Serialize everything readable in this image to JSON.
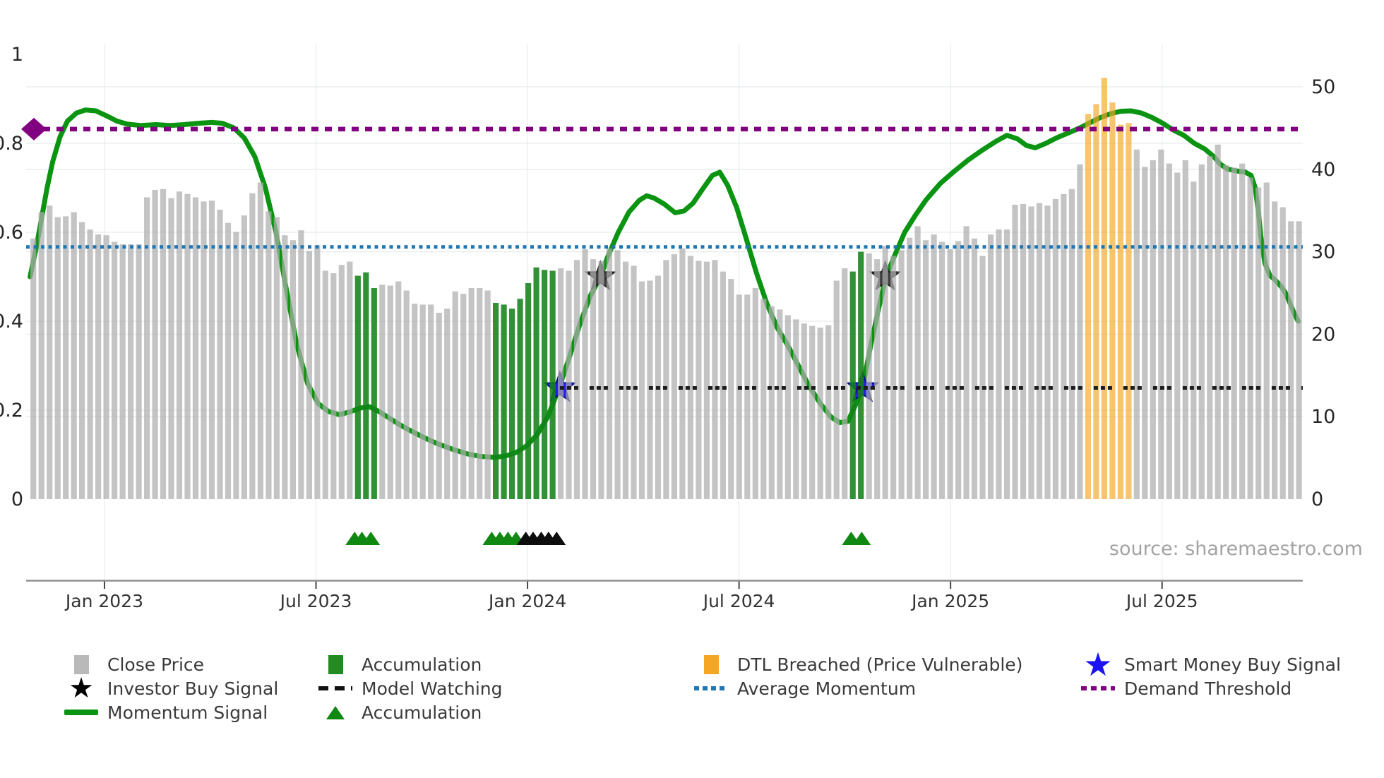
{
  "source_text": "source: sharemaestro.com",
  "legend": {
    "columns": [
      {
        "items": [
          {
            "swatch": "square-gray",
            "label": "Close Price"
          },
          {
            "swatch": "star-black",
            "label": "Investor Buy Signal"
          },
          {
            "swatch": "line-green",
            "label": "Momentum Signal"
          }
        ]
      },
      {
        "items": [
          {
            "swatch": "square-green",
            "label": "Accumulation"
          },
          {
            "swatch": "dash-black",
            "label": "Model Watching"
          },
          {
            "swatch": "triangle-green",
            "label": "Accumulation"
          }
        ]
      },
      {
        "items": [
          {
            "swatch": "square-orange",
            "label": "DTL Breached (Price Vulnerable)"
          },
          {
            "swatch": "dot-blue",
            "label": "Average Momentum"
          }
        ]
      },
      {
        "items": [
          {
            "swatch": "star-blue",
            "label": "Smart Money Buy Signal"
          },
          {
            "swatch": "dot-purple",
            "label": "Demand Threshold"
          }
        ]
      }
    ]
  },
  "chart_data": {
    "type": "combo-bar-line",
    "title": "",
    "x_axis": {
      "tick_labels": [
        "Jan 2023",
        "Jul 2023",
        "Jan 2024",
        "Jul 2024",
        "Jan 2025",
        "Jul 2025"
      ],
      "frequency": "weekly"
    },
    "left_axis": {
      "tick_values": [
        0,
        0.2,
        0.4,
        0.6,
        0.8,
        1
      ],
      "tick_labels": [
        "0",
        "0.2",
        "0.4",
        "0.6",
        "0.8",
        "1"
      ],
      "range": [
        0,
        1
      ],
      "grid_values": [
        0.2,
        0.4,
        0.6,
        0.8
      ]
    },
    "right_axis": {
      "tick_values": [
        0,
        10,
        20,
        30,
        40,
        50
      ],
      "tick_labels": [
        "0",
        "10",
        "20",
        "30",
        "40",
        "50"
      ],
      "range": [
        0,
        54
      ],
      "grid_values": [
        10,
        20,
        30,
        40,
        50
      ]
    },
    "close_price": {
      "values": [
        31.6,
        34.8,
        35.6,
        34.2,
        34.3,
        34.8,
        33.6,
        32.7,
        32.1,
        32.0,
        31.2,
        30.9,
        30.9,
        30.9,
        36.6,
        37.5,
        37.6,
        36.5,
        37.3,
        37.0,
        36.6,
        36.1,
        36.2,
        35.1,
        33.5,
        32.4,
        34.4,
        37.1,
        38.4,
        34.9,
        34.2,
        32.0,
        31.4,
        32.6,
        30.1,
        30.8,
        27.7,
        27.4,
        28.4,
        28.8,
        27.1,
        27.5,
        25.6,
        26.0,
        25.9,
        26.4,
        25.3,
        23.7,
        23.6,
        23.6,
        22.6,
        23.1,
        25.2,
        24.9,
        25.6,
        25.6,
        25.3,
        23.8,
        23.6,
        23.1,
        24.3,
        26.2,
        28.1,
        27.8,
        27.7,
        28.0,
        27.7,
        29.0,
        30.3,
        29.1,
        28.9,
        30.4,
        30.2,
        28.8,
        28.3,
        26.4,
        26.5,
        27.1,
        29.0,
        29.7,
        30.4,
        29.5,
        28.9,
        28.8,
        29.0,
        27.6,
        26.7,
        24.8,
        24.8,
        25.6,
        24.3,
        23.4,
        23.0,
        22.3,
        21.8,
        21.3,
        21.0,
        20.8,
        21.1,
        26.5,
        28.0,
        27.6,
        30.0,
        29.8,
        29.1,
        30.7,
        29.5,
        30.2,
        31.7,
        33.1,
        31.4,
        32.1,
        31.2,
        30.3,
        31.3,
        33.1,
        31.6,
        29.5,
        32.1,
        32.7,
        32.7,
        35.7,
        35.8,
        35.5,
        35.9,
        35.6,
        36.4,
        37.0,
        37.6,
        40.6,
        46.7,
        47.9,
        51.1,
        48.1,
        45.4,
        45.6,
        42.4,
        40.3,
        41.1,
        42.4,
        40.7,
        39.6,
        41.1,
        38.5,
        40.6,
        41.6,
        43.0,
        40.5,
        40.2,
        40.7,
        39.0,
        37.8,
        38.4,
        36.1,
        35.4,
        33.7,
        33.7
      ],
      "accumulation_ranges": [
        [
          40,
          42
        ],
        [
          57,
          64
        ],
        [
          101,
          102
        ]
      ],
      "dtl_breached_ranges": [
        [
          130,
          135
        ]
      ]
    },
    "momentum_signal": {
      "points": [
        [
          -0.4,
          0.5
        ],
        [
          0.3,
          0.56
        ],
        [
          1.0,
          0.63
        ],
        [
          1.7,
          0.7
        ],
        [
          2.4,
          0.76
        ],
        [
          3.3,
          0.815
        ],
        [
          4.2,
          0.85
        ],
        [
          5.3,
          0.868
        ],
        [
          6.4,
          0.875
        ],
        [
          7.7,
          0.873
        ],
        [
          9.0,
          0.862
        ],
        [
          10.3,
          0.85
        ],
        [
          11.6,
          0.843
        ],
        [
          13.3,
          0.84
        ],
        [
          15.1,
          0.842
        ],
        [
          16.8,
          0.84
        ],
        [
          18.6,
          0.842
        ],
        [
          20.3,
          0.845
        ],
        [
          22.0,
          0.847
        ],
        [
          23.3,
          0.845
        ],
        [
          24.7,
          0.835
        ],
        [
          26.0,
          0.812
        ],
        [
          27.3,
          0.77
        ],
        [
          28.6,
          0.7
        ],
        [
          29.9,
          0.6
        ],
        [
          31.2,
          0.47
        ],
        [
          32.5,
          0.345
        ],
        [
          33.8,
          0.26
        ],
        [
          35.1,
          0.215
        ],
        [
          36.4,
          0.197
        ],
        [
          37.7,
          0.19
        ],
        [
          39.0,
          0.196
        ],
        [
          40.3,
          0.205
        ],
        [
          41.4,
          0.208
        ],
        [
          42.5,
          0.198
        ],
        [
          43.8,
          0.183
        ],
        [
          45.1,
          0.168
        ],
        [
          46.4,
          0.155
        ],
        [
          48.2,
          0.138
        ],
        [
          49.9,
          0.124
        ],
        [
          51.7,
          0.112
        ],
        [
          53.4,
          0.102
        ],
        [
          55.1,
          0.096
        ],
        [
          56.9,
          0.094
        ],
        [
          58.2,
          0.097
        ],
        [
          59.5,
          0.105
        ],
        [
          60.8,
          0.12
        ],
        [
          62.1,
          0.145
        ],
        [
          63.4,
          0.185
        ],
        [
          64.7,
          0.245
        ],
        [
          66.0,
          0.315
        ],
        [
          67.3,
          0.39
        ],
        [
          68.6,
          0.455
        ],
        [
          69.9,
          0.5
        ],
        [
          70.8,
          0.545
        ],
        [
          72.1,
          0.6
        ],
        [
          73.4,
          0.645
        ],
        [
          74.7,
          0.672
        ],
        [
          75.6,
          0.682
        ],
        [
          76.5,
          0.677
        ],
        [
          77.8,
          0.663
        ],
        [
          79.1,
          0.644
        ],
        [
          80.2,
          0.648
        ],
        [
          81.3,
          0.665
        ],
        [
          82.6,
          0.7
        ],
        [
          83.7,
          0.728
        ],
        [
          84.6,
          0.735
        ],
        [
          85.6,
          0.705
        ],
        [
          86.7,
          0.655
        ],
        [
          87.8,
          0.59
        ],
        [
          89.1,
          0.51
        ],
        [
          90.4,
          0.44
        ],
        [
          91.7,
          0.385
        ],
        [
          93.0,
          0.345
        ],
        [
          94.3,
          0.3
        ],
        [
          95.6,
          0.255
        ],
        [
          97.0,
          0.215
        ],
        [
          98.3,
          0.185
        ],
        [
          99.4,
          0.172
        ],
        [
          100.4,
          0.175
        ],
        [
          101.3,
          0.21
        ],
        [
          102.2,
          0.25
        ],
        [
          103.2,
          0.345
        ],
        [
          104.2,
          0.43
        ],
        [
          105.1,
          0.5
        ],
        [
          106.1,
          0.545
        ],
        [
          107.4,
          0.6
        ],
        [
          108.7,
          0.638
        ],
        [
          110.0,
          0.672
        ],
        [
          111.8,
          0.71
        ],
        [
          113.5,
          0.737
        ],
        [
          115.2,
          0.762
        ],
        [
          117.0,
          0.785
        ],
        [
          118.7,
          0.805
        ],
        [
          120.0,
          0.818
        ],
        [
          121.3,
          0.81
        ],
        [
          122.4,
          0.795
        ],
        [
          123.5,
          0.79
        ],
        [
          124.8,
          0.8
        ],
        [
          126.1,
          0.812
        ],
        [
          127.4,
          0.822
        ],
        [
          128.8,
          0.833
        ],
        [
          130.1,
          0.845
        ],
        [
          131.4,
          0.857
        ],
        [
          132.7,
          0.866
        ],
        [
          134.0,
          0.872
        ],
        [
          135.3,
          0.873
        ],
        [
          136.6,
          0.868
        ],
        [
          137.9,
          0.858
        ],
        [
          139.2,
          0.845
        ],
        [
          140.5,
          0.83
        ],
        [
          141.8,
          0.818
        ],
        [
          143.1,
          0.8
        ],
        [
          144.4,
          0.787
        ],
        [
          145.5,
          0.77
        ],
        [
          146.3,
          0.753
        ],
        [
          147.2,
          0.742
        ],
        [
          148.3,
          0.738
        ],
        [
          149.4,
          0.735
        ],
        [
          150.1,
          0.728
        ],
        [
          150.6,
          0.7
        ],
        [
          151.0,
          0.645
        ],
        [
          151.3,
          0.59
        ],
        [
          151.8,
          0.53
        ],
        [
          152.4,
          0.503
        ],
        [
          153.1,
          0.492
        ],
        [
          153.8,
          0.478
        ],
        [
          154.3,
          0.465
        ],
        [
          154.9,
          0.44
        ],
        [
          155.4,
          0.418
        ],
        [
          155.9,
          0.4
        ]
      ]
    },
    "thresholds": {
      "demand_threshold": 0.832,
      "average_momentum": 0.567,
      "model_watching": 0.25,
      "model_watching_start_week": 64.9
    },
    "signals": {
      "investor_buy": [
        [
          69.9,
          0.5
        ],
        [
          105.0,
          0.5
        ]
      ],
      "smart_money_buy": [
        [
          64.9,
          0.25
        ],
        [
          102.2,
          0.25
        ]
      ]
    },
    "accumulation_triangle_weeks": {
      "green": [
        39.6,
        40.5,
        41.6,
        56.5,
        57.5,
        58.5,
        59.5,
        100.8,
        102.1
      ],
      "black": [
        60.7,
        61.6,
        62.6,
        63.5,
        64.5
      ]
    },
    "colors": {
      "close_price_bar": "#c7c7c7",
      "accumulation_bar": "#2e9b33",
      "dtl_breached_bar": "#f5a623",
      "momentum_line": "#0b9412",
      "average_momentum_line": "#1f77b4",
      "demand_threshold_line": "#800080",
      "model_watching_line": "#1c1c1c",
      "investor_buy_star": "#3c3c3c",
      "smart_money_star": "#2421e0",
      "triangle_green": "#118811",
      "triangle_black": "#0d0d0d"
    },
    "grid": true,
    "legend_position": "bottom"
  }
}
